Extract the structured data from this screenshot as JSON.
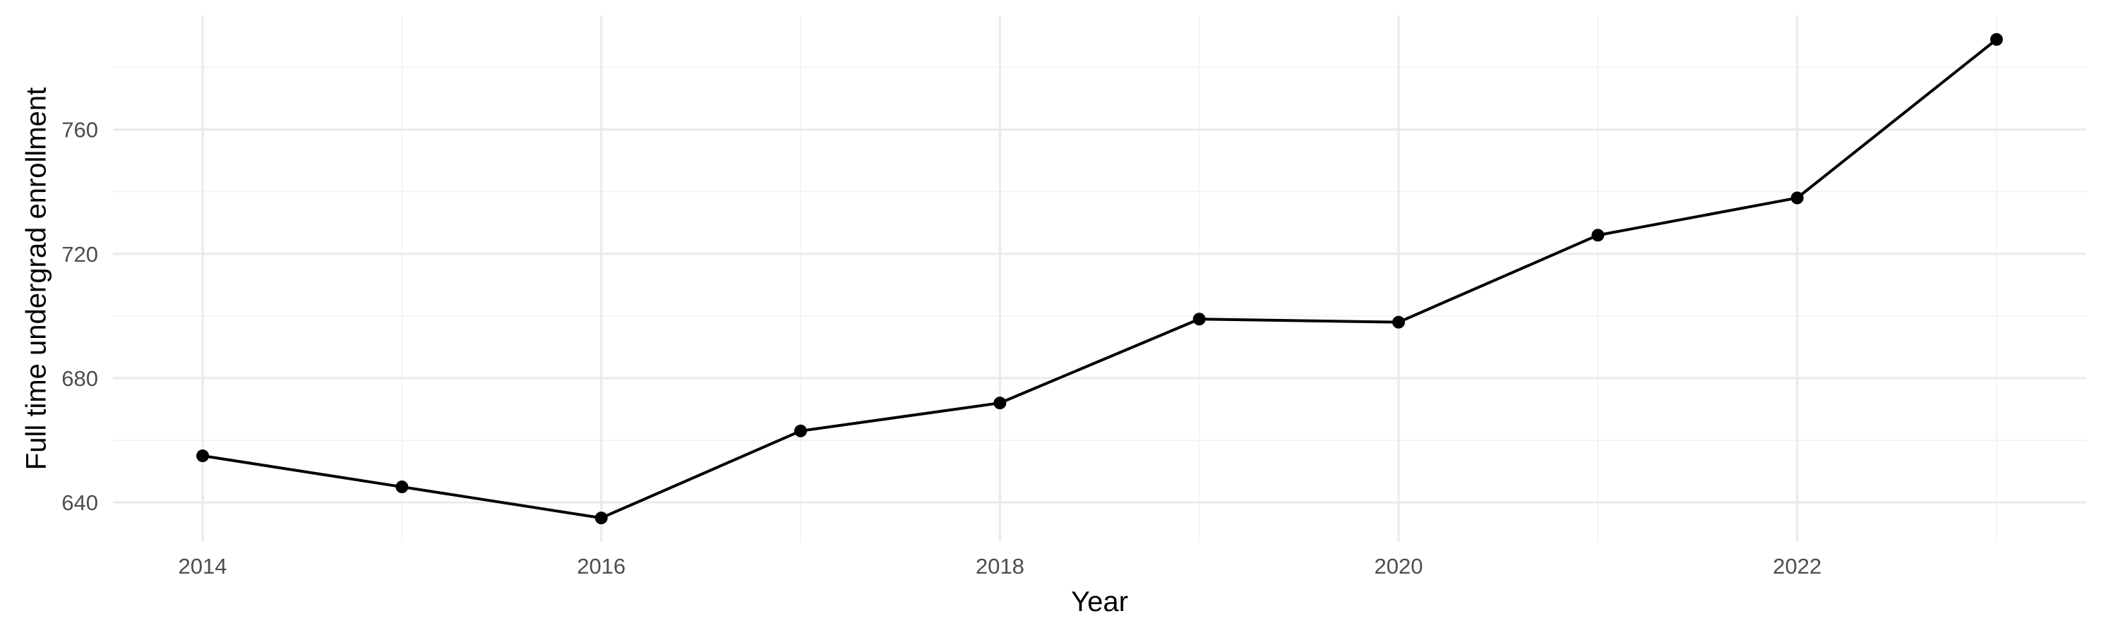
{
  "chart_data": {
    "type": "line",
    "x": [
      2014,
      2015,
      2016,
      2017,
      2018,
      2019,
      2020,
      2021,
      2022,
      2023
    ],
    "series": [
      {
        "values": [
          655,
          645,
          635,
          663,
          672,
          699,
          698,
          726,
          738,
          789
        ],
        "color": "#000000"
      }
    ],
    "xlabel": "Year",
    "ylabel": "Full time undergrad enrollment",
    "x_ticks": [
      "2014",
      "2016",
      "2018",
      "2020",
      "2022"
    ],
    "y_ticks": [
      "640",
      "680",
      "720",
      "760"
    ],
    "xlim": [
      2013.55,
      2023.45
    ],
    "ylim": [
      627.3,
      796.7
    ],
    "grid": true,
    "legend": "none",
    "markers": true
  }
}
